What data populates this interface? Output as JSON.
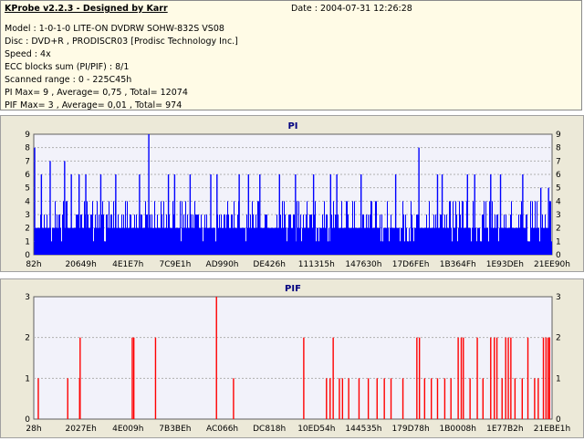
{
  "header": {
    "title": "KProbe v2.2.3 - Designed by Karr",
    "date": "Date : 2004-07-31 12:26:28",
    "lines": [
      "Model : 1-0-1-0 LITE-ON DVDRW SOHW-832S  VS08",
      "Disc : DVD+R , PRODISCR03 [Prodisc Technology Inc.]",
      "Speed : 4x",
      "ECC blocks sum (PI/PIF) : 8/1",
      "Scanned range : 0 - 225C45h",
      "PI Max= 9 , Average= 0,75 , Total= 12074",
      "PIF Max= 3 , Average= 0,01 , Total= 974"
    ]
  },
  "colors": {
    "pi": "#0000ff",
    "pif": "#ff0000",
    "plot_bg": "#f2f2fa",
    "chart_bg": "#ece9d8",
    "title": "#000080"
  },
  "chart_data": [
    {
      "type": "bar",
      "title": "PI",
      "ylim": [
        0,
        9
      ],
      "yticks": [
        "0",
        "1",
        "2",
        "3",
        "4",
        "5",
        "6",
        "7",
        "8",
        "9"
      ],
      "xticks": [
        "82h",
        "20649h",
        "4E1E7h",
        "7C9E1h",
        "AD990h",
        "DE426h",
        "111315h",
        "147630h",
        "17D6FEh",
        "1B364Fh",
        "1E93DEh",
        "21EE90h"
      ],
      "spikes": [
        {
          "x": 0.0,
          "v": 8
        },
        {
          "x": 0.013,
          "v": 6
        },
        {
          "x": 0.03,
          "v": 7
        },
        {
          "x": 0.058,
          "v": 7
        },
        {
          "x": 0.071,
          "v": 6
        },
        {
          "x": 0.086,
          "v": 6
        },
        {
          "x": 0.099,
          "v": 6
        },
        {
          "x": 0.128,
          "v": 6
        },
        {
          "x": 0.157,
          "v": 6
        },
        {
          "x": 0.203,
          "v": 6
        },
        {
          "x": 0.221,
          "v": 9
        },
        {
          "x": 0.259,
          "v": 6
        },
        {
          "x": 0.271,
          "v": 6
        },
        {
          "x": 0.301,
          "v": 6
        },
        {
          "x": 0.341,
          "v": 6
        },
        {
          "x": 0.353,
          "v": 6
        },
        {
          "x": 0.396,
          "v": 6
        },
        {
          "x": 0.414,
          "v": 6
        },
        {
          "x": 0.436,
          "v": 6
        },
        {
          "x": 0.474,
          "v": 6
        },
        {
          "x": 0.505,
          "v": 6
        },
        {
          "x": 0.54,
          "v": 6
        },
        {
          "x": 0.573,
          "v": 6
        },
        {
          "x": 0.585,
          "v": 6
        },
        {
          "x": 0.632,
          "v": 6
        },
        {
          "x": 0.699,
          "v": 6
        },
        {
          "x": 0.744,
          "v": 8
        },
        {
          "x": 0.78,
          "v": 6
        },
        {
          "x": 0.789,
          "v": 6
        },
        {
          "x": 0.838,
          "v": 6
        },
        {
          "x": 0.852,
          "v": 6
        },
        {
          "x": 0.883,
          "v": 6
        },
        {
          "x": 0.902,
          "v": 6
        },
        {
          "x": 0.945,
          "v": 6
        },
        {
          "x": 0.98,
          "v": 5
        },
        {
          "x": 0.995,
          "v": 5
        }
      ]
    },
    {
      "type": "bar",
      "title": "PIF",
      "ylim": [
        0,
        3
      ],
      "yticks": [
        "0",
        "1",
        "2",
        "3"
      ],
      "xticks": [
        "28h",
        "2027Eh",
        "4E009h",
        "7B3BEh",
        "AC066h",
        "DC818h",
        "10ED54h",
        "144535h",
        "179D78h",
        "1B0008h",
        "1E77B2h",
        "21EBE1h"
      ],
      "spikes": [
        {
          "x": 0.007,
          "v": 1
        },
        {
          "x": 0.064,
          "v": 1
        },
        {
          "x": 0.087,
          "v": 1
        },
        {
          "x": 0.088,
          "v": 2
        },
        {
          "x": 0.189,
          "v": 2
        },
        {
          "x": 0.192,
          "v": 2
        },
        {
          "x": 0.234,
          "v": 2
        },
        {
          "x": 0.352,
          "v": 3
        },
        {
          "x": 0.385,
          "v": 1
        },
        {
          "x": 0.521,
          "v": 2
        },
        {
          "x": 0.565,
          "v": 1
        },
        {
          "x": 0.572,
          "v": 1
        },
        {
          "x": 0.578,
          "v": 2
        },
        {
          "x": 0.59,
          "v": 1
        },
        {
          "x": 0.596,
          "v": 1
        },
        {
          "x": 0.608,
          "v": 1
        },
        {
          "x": 0.628,
          "v": 1
        },
        {
          "x": 0.646,
          "v": 1
        },
        {
          "x": 0.663,
          "v": 1
        },
        {
          "x": 0.677,
          "v": 1
        },
        {
          "x": 0.69,
          "v": 1
        },
        {
          "x": 0.713,
          "v": 1
        },
        {
          "x": 0.74,
          "v": 2
        },
        {
          "x": 0.745,
          "v": 2
        },
        {
          "x": 0.755,
          "v": 1
        },
        {
          "x": 0.768,
          "v": 1
        },
        {
          "x": 0.78,
          "v": 1
        },
        {
          "x": 0.794,
          "v": 1
        },
        {
          "x": 0.806,
          "v": 1
        },
        {
          "x": 0.82,
          "v": 2
        },
        {
          "x": 0.826,
          "v": 2
        },
        {
          "x": 0.83,
          "v": 2
        },
        {
          "x": 0.843,
          "v": 1
        },
        {
          "x": 0.857,
          "v": 2
        },
        {
          "x": 0.868,
          "v": 1
        },
        {
          "x": 0.883,
          "v": 2
        },
        {
          "x": 0.89,
          "v": 2
        },
        {
          "x": 0.895,
          "v": 2
        },
        {
          "x": 0.905,
          "v": 1
        },
        {
          "x": 0.912,
          "v": 2
        },
        {
          "x": 0.917,
          "v": 2
        },
        {
          "x": 0.922,
          "v": 2
        },
        {
          "x": 0.93,
          "v": 1
        },
        {
          "x": 0.944,
          "v": 1
        },
        {
          "x": 0.955,
          "v": 2
        },
        {
          "x": 0.968,
          "v": 1
        },
        {
          "x": 0.975,
          "v": 1
        },
        {
          "x": 0.985,
          "v": 2
        },
        {
          "x": 0.99,
          "v": 2
        },
        {
          "x": 0.994,
          "v": 2
        },
        {
          "x": 0.997,
          "v": 2
        }
      ]
    }
  ]
}
